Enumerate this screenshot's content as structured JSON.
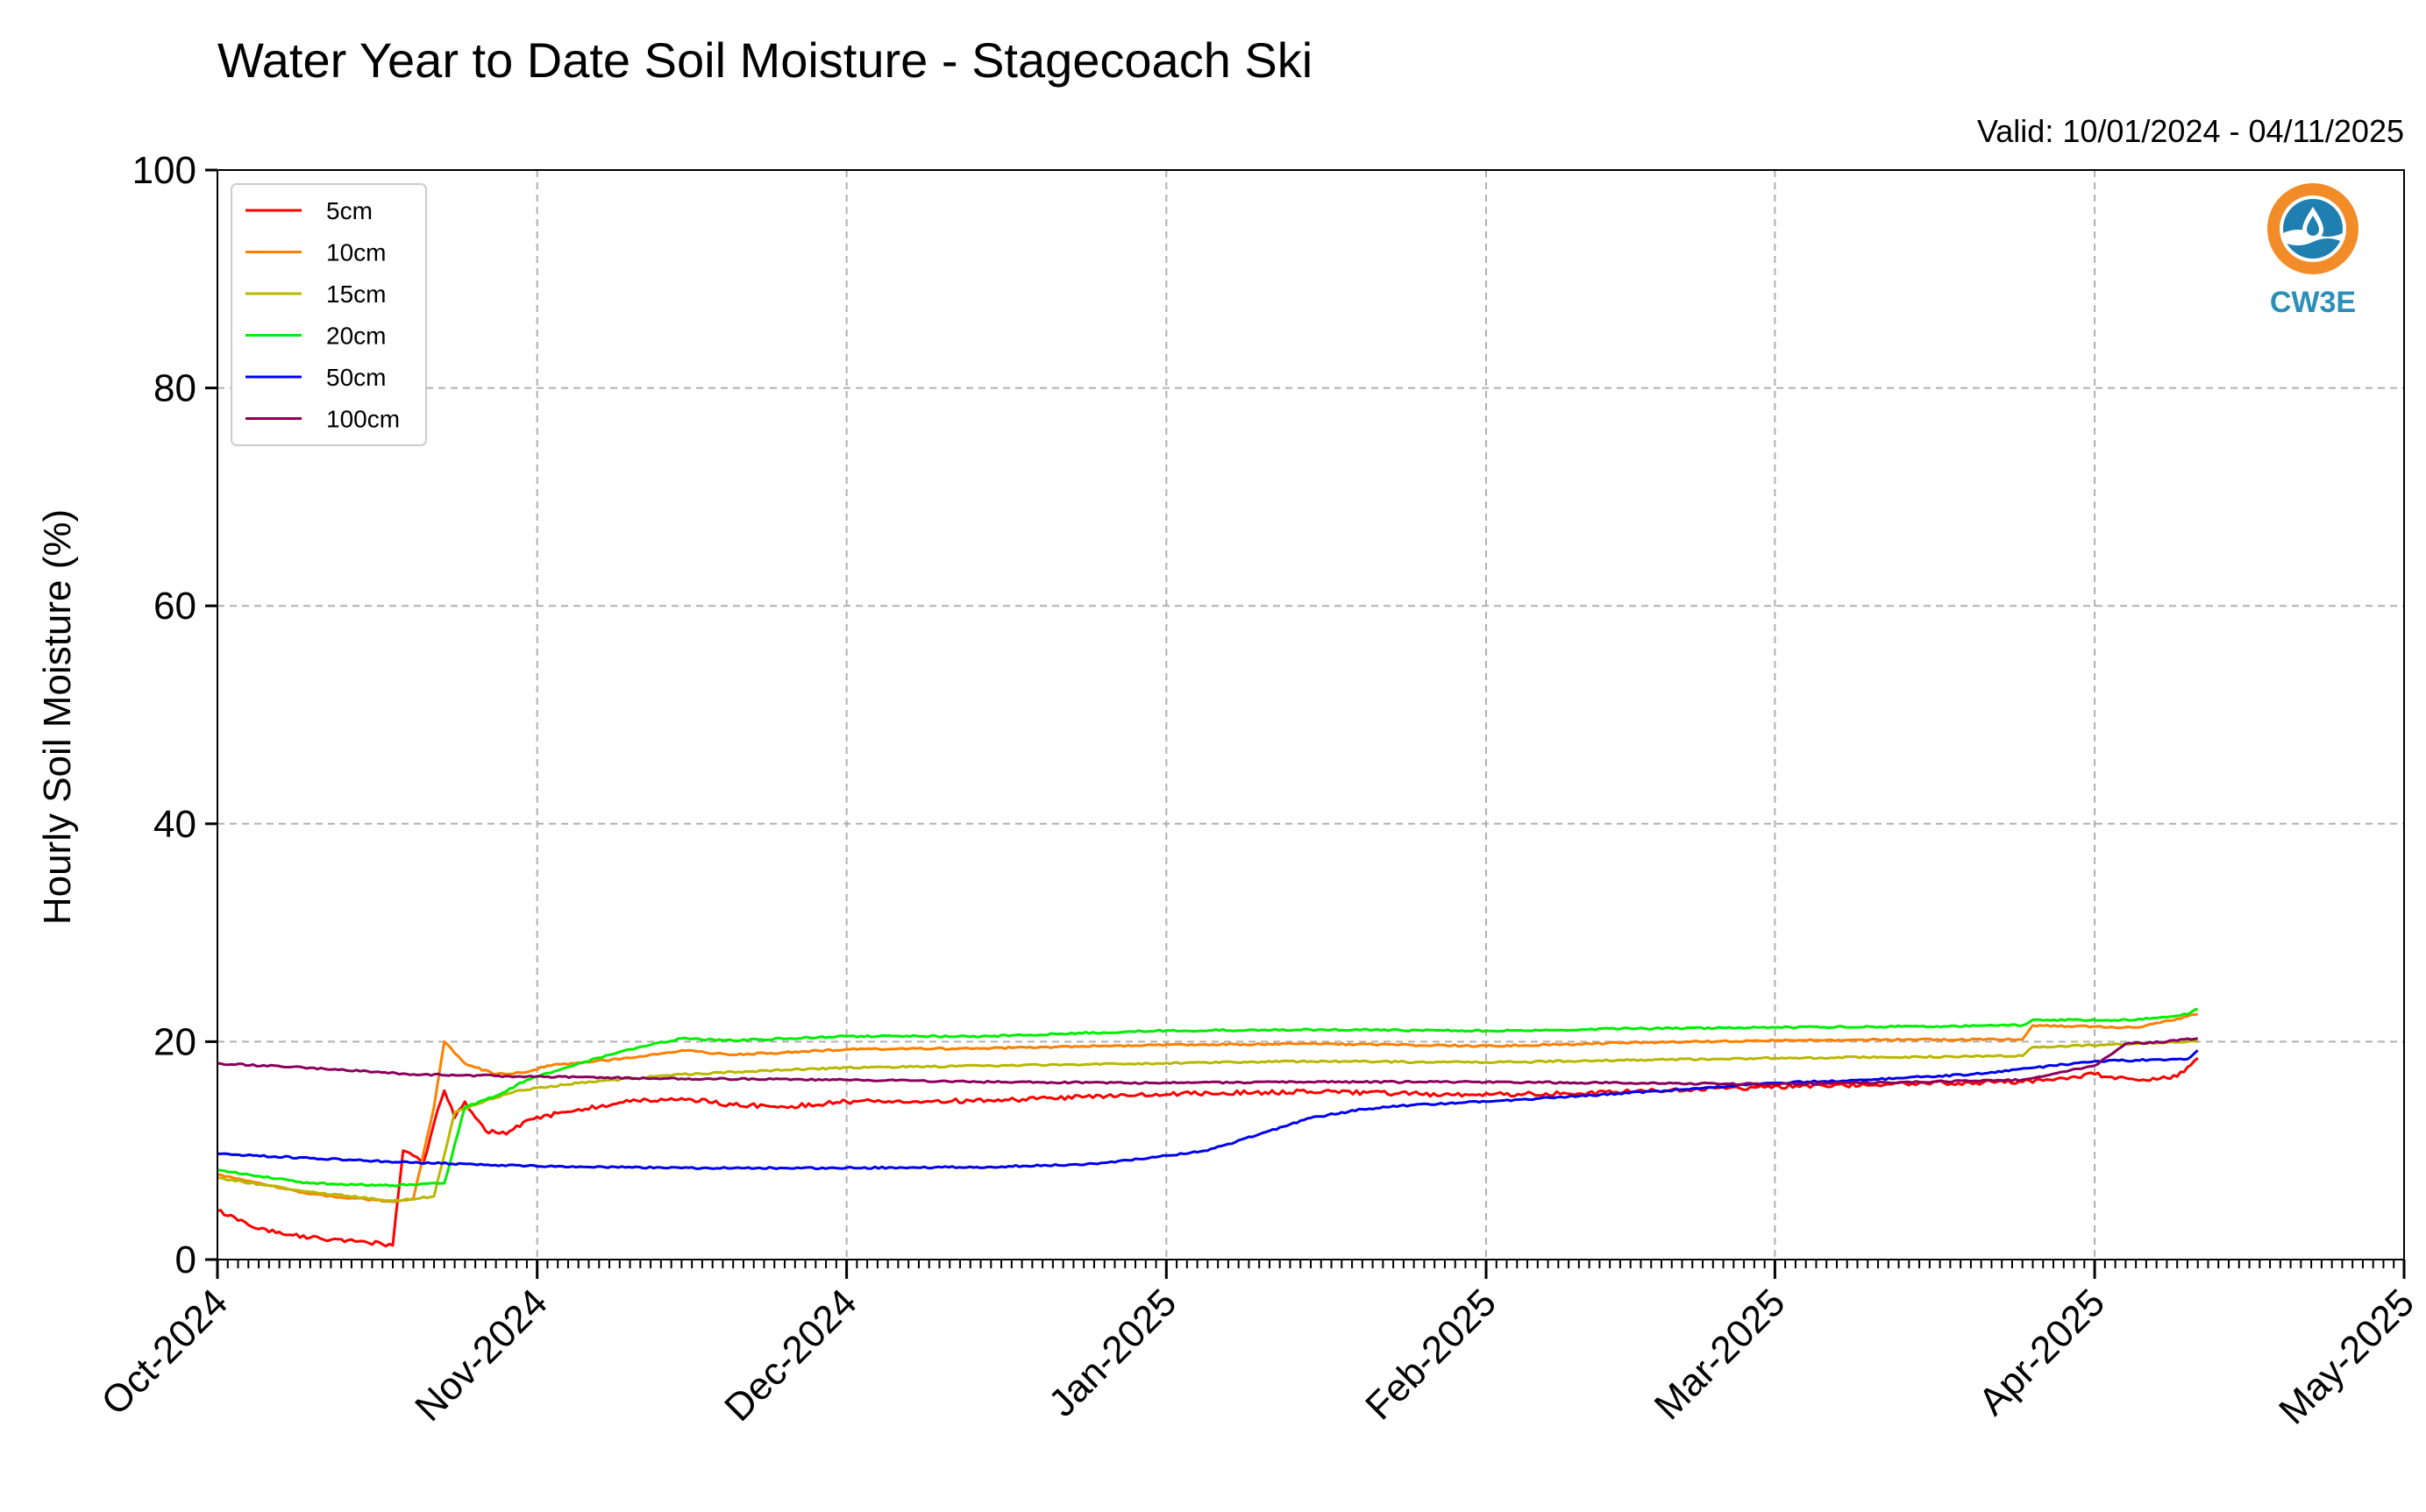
{
  "title": "Water Year to Date Soil Moisture - Stagecoach Ski",
  "valid": "Valid: 10/01/2024 - 04/11/2025",
  "logo": {
    "text": "CW3E",
    "icon": "water-drop-sun-icon"
  },
  "chart_data": {
    "type": "line",
    "title": "Water Year to Date Soil Moisture - Stagecoach Ski",
    "xlabel": "",
    "ylabel": "Hourly Soil Moisture (%)",
    "ylim": [
      0,
      100
    ],
    "yticks": [
      0,
      20,
      40,
      60,
      80,
      100
    ],
    "xlim": [
      "2024-10-01",
      "2025-05-01"
    ],
    "xticks": [
      {
        "date": "2024-10-01",
        "label": "Oct-2024"
      },
      {
        "date": "2024-11-01",
        "label": "Nov-2024"
      },
      {
        "date": "2024-12-01",
        "label": "Dec-2024"
      },
      {
        "date": "2025-01-01",
        "label": "Jan-2025"
      },
      {
        "date": "2025-02-01",
        "label": "Feb-2025"
      },
      {
        "date": "2025-03-01",
        "label": "Mar-2025"
      },
      {
        "date": "2025-04-01",
        "label": "Apr-2025"
      },
      {
        "date": "2025-05-01",
        "label": "May-2025"
      }
    ],
    "grid": true,
    "legend_position": "top-left",
    "series": [
      {
        "name": "5cm",
        "color": "#ff0000",
        "points": [
          [
            "2024-10-01",
            4.5
          ],
          [
            "2024-10-05",
            2.8
          ],
          [
            "2024-10-10",
            2.0
          ],
          [
            "2024-10-15",
            1.7
          ],
          [
            "2024-10-18",
            1.3
          ],
          [
            "2024-10-19",
            10.0
          ],
          [
            "2024-10-21",
            9.0
          ],
          [
            "2024-10-22",
            12.5
          ],
          [
            "2024-10-23",
            15.5
          ],
          [
            "2024-10-24",
            13.0
          ],
          [
            "2024-10-25",
            14.5
          ],
          [
            "2024-10-27",
            11.8
          ],
          [
            "2024-10-29",
            11.5
          ],
          [
            "2024-10-31",
            12.8
          ],
          [
            "2024-11-05",
            13.8
          ],
          [
            "2024-11-10",
            14.5
          ],
          [
            "2024-11-15",
            14.8
          ],
          [
            "2024-11-20",
            14.2
          ],
          [
            "2024-11-25",
            14.0
          ],
          [
            "2024-12-01",
            14.5
          ],
          [
            "2024-12-15",
            14.6
          ],
          [
            "2024-12-31",
            15.2
          ],
          [
            "2025-01-15",
            15.4
          ],
          [
            "2025-01-31",
            15.1
          ],
          [
            "2025-02-15",
            15.4
          ],
          [
            "2025-02-28",
            15.8
          ],
          [
            "2025-03-15",
            16.2
          ],
          [
            "2025-03-25",
            16.3
          ],
          [
            "2025-04-01",
            17.0
          ],
          [
            "2025-04-05",
            16.5
          ],
          [
            "2025-04-09",
            16.8
          ],
          [
            "2025-04-11",
            18.5
          ]
        ]
      },
      {
        "name": "10cm",
        "color": "#ff8000",
        "points": [
          [
            "2024-10-01",
            7.8
          ],
          [
            "2024-10-10",
            6.0
          ],
          [
            "2024-10-18",
            5.3
          ],
          [
            "2024-10-20",
            5.6
          ],
          [
            "2024-10-22",
            14.0
          ],
          [
            "2024-10-23",
            20.0
          ],
          [
            "2024-10-25",
            18.0
          ],
          [
            "2024-10-28",
            17.0
          ],
          [
            "2024-10-31",
            17.2
          ],
          [
            "2024-11-02",
            17.8
          ],
          [
            "2024-11-10",
            18.5
          ],
          [
            "2024-11-15",
            19.2
          ],
          [
            "2024-11-20",
            18.8
          ],
          [
            "2024-11-25",
            19.0
          ],
          [
            "2024-12-01",
            19.3
          ],
          [
            "2024-12-15",
            19.4
          ],
          [
            "2024-12-31",
            19.7
          ],
          [
            "2025-01-15",
            19.8
          ],
          [
            "2025-02-01",
            19.6
          ],
          [
            "2025-02-15",
            19.9
          ],
          [
            "2025-03-01",
            20.1
          ],
          [
            "2025-03-15",
            20.2
          ],
          [
            "2025-03-25",
            20.2
          ],
          [
            "2025-03-26",
            21.5
          ],
          [
            "2025-04-05",
            21.3
          ],
          [
            "2025-04-11",
            22.5
          ]
        ]
      },
      {
        "name": "15cm",
        "color": "#b8b800",
        "points": [
          [
            "2024-10-01",
            7.5
          ],
          [
            "2024-10-10",
            6.2
          ],
          [
            "2024-10-18",
            5.4
          ],
          [
            "2024-10-22",
            5.8
          ],
          [
            "2024-10-24",
            13.5
          ],
          [
            "2024-10-26",
            14.2
          ],
          [
            "2024-10-30",
            15.5
          ],
          [
            "2024-11-05",
            16.2
          ],
          [
            "2024-11-15",
            17.0
          ],
          [
            "2024-11-25",
            17.4
          ],
          [
            "2024-12-01",
            17.6
          ],
          [
            "2024-12-15",
            17.8
          ],
          [
            "2024-12-31",
            18.0
          ],
          [
            "2025-01-15",
            18.2
          ],
          [
            "2025-02-01",
            18.1
          ],
          [
            "2025-02-15",
            18.3
          ],
          [
            "2025-03-01",
            18.5
          ],
          [
            "2025-03-15",
            18.6
          ],
          [
            "2025-03-25",
            18.7
          ],
          [
            "2025-03-26",
            19.5
          ],
          [
            "2025-04-05",
            19.8
          ],
          [
            "2025-04-11",
            20.0
          ]
        ]
      },
      {
        "name": "20cm",
        "color": "#00ee00",
        "points": [
          [
            "2024-10-01",
            8.2
          ],
          [
            "2024-10-10",
            7.0
          ],
          [
            "2024-10-18",
            6.8
          ],
          [
            "2024-10-23",
            7.0
          ],
          [
            "2024-10-25",
            14.0
          ],
          [
            "2024-10-28",
            15.0
          ],
          [
            "2024-10-31",
            16.5
          ],
          [
            "2024-11-05",
            18.0
          ],
          [
            "2024-11-10",
            19.3
          ],
          [
            "2024-11-15",
            20.3
          ],
          [
            "2024-11-20",
            20.1
          ],
          [
            "2024-12-01",
            20.5
          ],
          [
            "2024-12-15",
            20.5
          ],
          [
            "2024-12-31",
            21.0
          ],
          [
            "2025-01-15",
            21.1
          ],
          [
            "2025-02-01",
            21.0
          ],
          [
            "2025-02-15",
            21.2
          ],
          [
            "2025-03-01",
            21.3
          ],
          [
            "2025-03-15",
            21.4
          ],
          [
            "2025-03-25",
            21.5
          ],
          [
            "2025-03-26",
            22.0
          ],
          [
            "2025-04-05",
            22.0
          ],
          [
            "2025-04-10",
            22.5
          ],
          [
            "2025-04-11",
            23.0
          ]
        ]
      },
      {
        "name": "50cm",
        "color": "#0000ee",
        "points": [
          [
            "2024-10-01",
            9.7
          ],
          [
            "2024-10-10",
            9.3
          ],
          [
            "2024-10-20",
            8.9
          ],
          [
            "2024-10-31",
            8.6
          ],
          [
            "2024-11-15",
            8.4
          ],
          [
            "2024-11-30",
            8.4
          ],
          [
            "2024-12-15",
            8.5
          ],
          [
            "2024-12-25",
            8.8
          ],
          [
            "2024-12-31",
            9.4
          ],
          [
            "2025-01-05",
            10.0
          ],
          [
            "2025-01-10",
            11.5
          ],
          [
            "2025-01-15",
            13.0
          ],
          [
            "2025-01-20",
            13.8
          ],
          [
            "2025-01-25",
            14.2
          ],
          [
            "2025-02-01",
            14.5
          ],
          [
            "2025-02-10",
            15.0
          ],
          [
            "2025-02-20",
            15.6
          ],
          [
            "2025-03-01",
            16.2
          ],
          [
            "2025-03-10",
            16.5
          ],
          [
            "2025-03-20",
            17.0
          ],
          [
            "2025-03-28",
            17.8
          ],
          [
            "2025-04-01",
            18.2
          ],
          [
            "2025-04-05",
            18.3
          ],
          [
            "2025-04-10",
            18.4
          ],
          [
            "2025-04-11",
            19.2
          ]
        ]
      },
      {
        "name": "100cm",
        "color": "#8b005b",
        "points": [
          [
            "2024-10-01",
            18.0
          ],
          [
            "2024-10-10",
            17.6
          ],
          [
            "2024-10-20",
            17.0
          ],
          [
            "2024-10-31",
            16.8
          ],
          [
            "2024-11-15",
            16.6
          ],
          [
            "2024-11-30",
            16.5
          ],
          [
            "2024-12-15",
            16.3
          ],
          [
            "2024-12-31",
            16.2
          ],
          [
            "2025-01-15",
            16.3
          ],
          [
            "2025-02-01",
            16.3
          ],
          [
            "2025-02-15",
            16.2
          ],
          [
            "2025-03-01",
            16.1
          ],
          [
            "2025-03-15",
            16.3
          ],
          [
            "2025-03-25",
            16.5
          ],
          [
            "2025-04-01",
            17.8
          ],
          [
            "2025-04-04",
            19.8
          ],
          [
            "2025-04-08",
            20.0
          ],
          [
            "2025-04-11",
            20.3
          ]
        ]
      }
    ]
  }
}
